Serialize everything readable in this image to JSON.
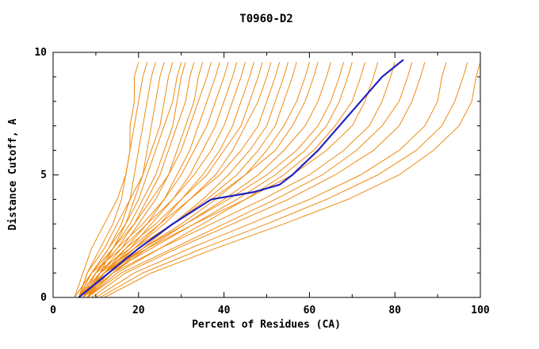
{
  "title": "T0960-D2",
  "chart_data": {
    "type": "line",
    "title": "T0960-D2",
    "xlabel": "Percent of Residues (CA)",
    "ylabel": "Distance Cutoff, A",
    "xlim": [
      0,
      100
    ],
    "ylim": [
      0,
      10
    ],
    "x_major_ticks": [
      0,
      20,
      40,
      60,
      80,
      100
    ],
    "x_minor_ticks": [
      10,
      30,
      50,
      70,
      90
    ],
    "y_major_ticks": [
      0,
      5,
      10
    ],
    "y_minor_ticks": [
      1,
      2,
      3,
      4,
      6,
      7,
      8,
      9
    ],
    "grid": false,
    "legend": "none",
    "colors": {
      "prediction": "#ef8a10",
      "highlight": "#2222c2",
      "axis": "#000000"
    },
    "y_grid": [
      0,
      1,
      2,
      3,
      4,
      5,
      6,
      7,
      8,
      9,
      9.6
    ],
    "series": [
      [
        6,
        8,
        11,
        14,
        16,
        17,
        18,
        18,
        19,
        19,
        20
      ],
      [
        5,
        7,
        9,
        12,
        15,
        17,
        18,
        19,
        20,
        21,
        22
      ],
      [
        6,
        9,
        13,
        16,
        18,
        19,
        20,
        21,
        22,
        23,
        24
      ],
      [
        7,
        10,
        14,
        17,
        19,
        21,
        22,
        23,
        24,
        25,
        26
      ],
      [
        6,
        8,
        12,
        15,
        18,
        21,
        23,
        25,
        26,
        27,
        28
      ],
      [
        5,
        9,
        13,
        17,
        20,
        22,
        24,
        26,
        28,
        29,
        30
      ],
      [
        8,
        11,
        14,
        18,
        21,
        24,
        26,
        28,
        29,
        30,
        31
      ],
      [
        6,
        10,
        15,
        19,
        22,
        25,
        27,
        29,
        31,
        32,
        33
      ],
      [
        7,
        11,
        16,
        20,
        24,
        27,
        29,
        31,
        33,
        34,
        35
      ],
      [
        6,
        9,
        14,
        19,
        23,
        27,
        30,
        32,
        34,
        36,
        37
      ],
      [
        8,
        12,
        17,
        22,
        26,
        29,
        32,
        34,
        36,
        38,
        39
      ],
      [
        6,
        10,
        15,
        21,
        26,
        30,
        33,
        36,
        38,
        40,
        41
      ],
      [
        7,
        12,
        18,
        23,
        28,
        32,
        35,
        38,
        40,
        42,
        43
      ],
      [
        5,
        9,
        16,
        22,
        28,
        33,
        37,
        40,
        42,
        44,
        45
      ],
      [
        8,
        13,
        19,
        25,
        30,
        35,
        39,
        42,
        44,
        46,
        47
      ],
      [
        6,
        11,
        17,
        24,
        30,
        36,
        40,
        44,
        46,
        48,
        49
      ],
      [
        7,
        12,
        19,
        26,
        32,
        38,
        42,
        45,
        48,
        50,
        51
      ],
      [
        6,
        10,
        18,
        25,
        32,
        39,
        44,
        48,
        50,
        52,
        53
      ],
      [
        8,
        14,
        21,
        28,
        35,
        41,
        46,
        50,
        52,
        54,
        55
      ],
      [
        6,
        12,
        20,
        28,
        36,
        43,
        48,
        52,
        54,
        56,
        57
      ],
      [
        7,
        13,
        21,
        30,
        38,
        45,
        50,
        54,
        57,
        59,
        60
      ],
      [
        6,
        11,
        19,
        28,
        37,
        45,
        52,
        56,
        59,
        61,
        62
      ],
      [
        8,
        14,
        22,
        31,
        40,
        48,
        54,
        59,
        62,
        64,
        65
      ],
      [
        6,
        12,
        21,
        31,
        41,
        50,
        57,
        62,
        65,
        67,
        68
      ],
      [
        7,
        13,
        23,
        33,
        43,
        52,
        59,
        64,
        67,
        69,
        70
      ],
      [
        8,
        15,
        25,
        35,
        45,
        54,
        61,
        66,
        70,
        72,
        73
      ],
      [
        6,
        12,
        22,
        33,
        45,
        56,
        64,
        70,
        73,
        75,
        76
      ],
      [
        7,
        14,
        25,
        37,
        49,
        60,
        68,
        74,
        77,
        79,
        80
      ],
      [
        8,
        16,
        28,
        40,
        52,
        63,
        71,
        77,
        81,
        83,
        84
      ],
      [
        9,
        17,
        29,
        42,
        55,
        66,
        75,
        81,
        84,
        86,
        87
      ],
      [
        10,
        19,
        32,
        46,
        60,
        72,
        81,
        87,
        90,
        91,
        92
      ],
      [
        11,
        21,
        35,
        50,
        64,
        76,
        85,
        91,
        94,
        96,
        97
      ],
      [
        12,
        23,
        38,
        54,
        69,
        81,
        89,
        95,
        98,
        99,
        100
      ]
    ],
    "highlight": {
      "y": [
        0,
        1,
        2,
        3,
        4,
        4.3,
        4.6,
        5,
        6,
        7,
        8,
        9,
        9.7
      ],
      "x": [
        6,
        13,
        20,
        28,
        37,
        47,
        53,
        56,
        62,
        67,
        72,
        77,
        82
      ]
    }
  }
}
